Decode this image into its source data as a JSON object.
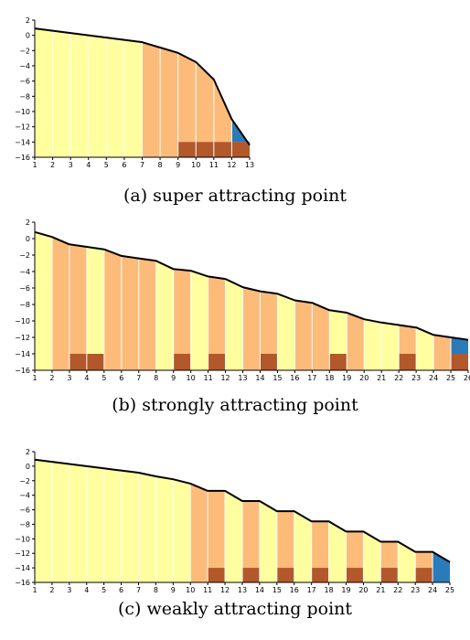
{
  "colors": {
    "light_yellow": "#ffff9f",
    "orange": "#fdbb7a",
    "brown": "#b2582a",
    "blue": "#2b7bb9",
    "curve": "#000000"
  },
  "chart_data": [
    {
      "type": "bar",
      "caption": "(a) super attracting point",
      "x": [
        1,
        2,
        3,
        4,
        5,
        6,
        7,
        8,
        9,
        10,
        11,
        12,
        13
      ],
      "curve": [
        0.9,
        0.6,
        0.3,
        0.0,
        -0.3,
        -0.6,
        -0.9,
        -1.6,
        -2.3,
        -3.5,
        -5.8,
        -11.0,
        -14.4
      ],
      "xlim": [
        1,
        13
      ],
      "ylim": [
        -16,
        2
      ],
      "yticks": [
        2,
        0,
        -2,
        -4,
        -6,
        -8,
        -10,
        -12,
        -14,
        -16
      ],
      "xticks": [
        1,
        2,
        3,
        4,
        5,
        6,
        7,
        8,
        9,
        10,
        11,
        12,
        13
      ],
      "bar_colors": [
        "light_yellow",
        "light_yellow",
        "light_yellow",
        "light_yellow",
        "light_yellow",
        "light_yellow",
        "orange",
        "orange",
        "orange",
        "orange",
        "orange",
        "blue"
      ],
      "brown_blocks": [
        9,
        10,
        11,
        12
      ],
      "brown_top": -14,
      "blue_band": [
        -14,
        null
      ]
    },
    {
      "type": "bar",
      "caption": "(b) strongly attracting point",
      "x": [
        1,
        2,
        3,
        4,
        5,
        6,
        7,
        8,
        9,
        10,
        11,
        12,
        13,
        14,
        15,
        16,
        17,
        18,
        19,
        20,
        21,
        22,
        23,
        24,
        25,
        26
      ],
      "curve": [
        0.8,
        0.2,
        -0.7,
        -1.0,
        -1.3,
        -2.1,
        -2.4,
        -2.7,
        -3.7,
        -3.9,
        -4.6,
        -4.9,
        -5.9,
        -6.4,
        -6.7,
        -7.5,
        -7.8,
        -8.7,
        -9.0,
        -9.8,
        -10.2,
        -10.5,
        -10.8,
        -11.7,
        -12.0,
        -12.3
      ],
      "xlim": [
        1,
        26
      ],
      "ylim": [
        -16,
        2
      ],
      "yticks": [
        2,
        0,
        -2,
        -4,
        -6,
        -8,
        -10,
        -12,
        -14,
        -16
      ],
      "xticks": [
        1,
        2,
        3,
        4,
        5,
        6,
        7,
        8,
        9,
        10,
        11,
        12,
        13,
        14,
        15,
        16,
        17,
        18,
        19,
        20,
        21,
        22,
        23,
        24,
        25,
        26
      ],
      "bar_colors": [
        "light_yellow",
        "orange",
        "orange",
        "light_yellow",
        "orange",
        "orange",
        "orange",
        "light_yellow",
        "orange",
        "light_yellow",
        "orange",
        "light_yellow",
        "orange",
        "orange",
        "light_yellow",
        "orange",
        "orange",
        "light_yellow",
        "orange",
        "light_yellow",
        "light_yellow",
        "orange",
        "light_yellow",
        "orange",
        "blue"
      ],
      "brown_blocks": [
        3,
        4,
        9,
        11,
        14,
        18,
        22,
        25
      ],
      "brown_top": -14,
      "blue_band": [
        -14,
        null
      ]
    },
    {
      "type": "bar",
      "caption": "(c) weakly attracting point",
      "x": [
        1,
        2,
        3,
        4,
        5,
        6,
        7,
        8,
        9,
        10,
        11,
        12,
        13,
        14,
        15,
        16,
        17,
        18,
        19,
        20,
        21,
        22,
        23,
        24,
        25
      ],
      "curve": [
        0.9,
        0.6,
        0.3,
        0.0,
        -0.3,
        -0.6,
        -0.9,
        -1.4,
        -1.8,
        -2.4,
        -3.4,
        -3.4,
        -4.8,
        -4.8,
        -6.2,
        -6.2,
        -7.6,
        -7.6,
        -9.0,
        -9.0,
        -10.4,
        -10.4,
        -11.8,
        -11.8,
        -13.2
      ],
      "xlim": [
        1,
        25
      ],
      "ylim": [
        -16,
        2
      ],
      "yticks": [
        2,
        0,
        -2,
        -4,
        -6,
        -8,
        -10,
        -12,
        -14,
        -16
      ],
      "xticks": [
        1,
        2,
        3,
        4,
        5,
        6,
        7,
        8,
        9,
        10,
        11,
        12,
        13,
        14,
        15,
        16,
        17,
        18,
        19,
        20,
        21,
        22,
        23,
        24,
        25
      ],
      "bar_colors": [
        "light_yellow",
        "light_yellow",
        "light_yellow",
        "light_yellow",
        "light_yellow",
        "light_yellow",
        "light_yellow",
        "light_yellow",
        "light_yellow",
        "orange",
        "orange",
        "light_yellow",
        "orange",
        "light_yellow",
        "orange",
        "light_yellow",
        "orange",
        "light_yellow",
        "orange",
        "light_yellow",
        "orange",
        "light_yellow",
        "orange",
        "blue"
      ],
      "brown_blocks": [
        11,
        13,
        15,
        17,
        19,
        21,
        23
      ],
      "brown_top": -14,
      "blue_band": [
        -16,
        null
      ]
    }
  ]
}
